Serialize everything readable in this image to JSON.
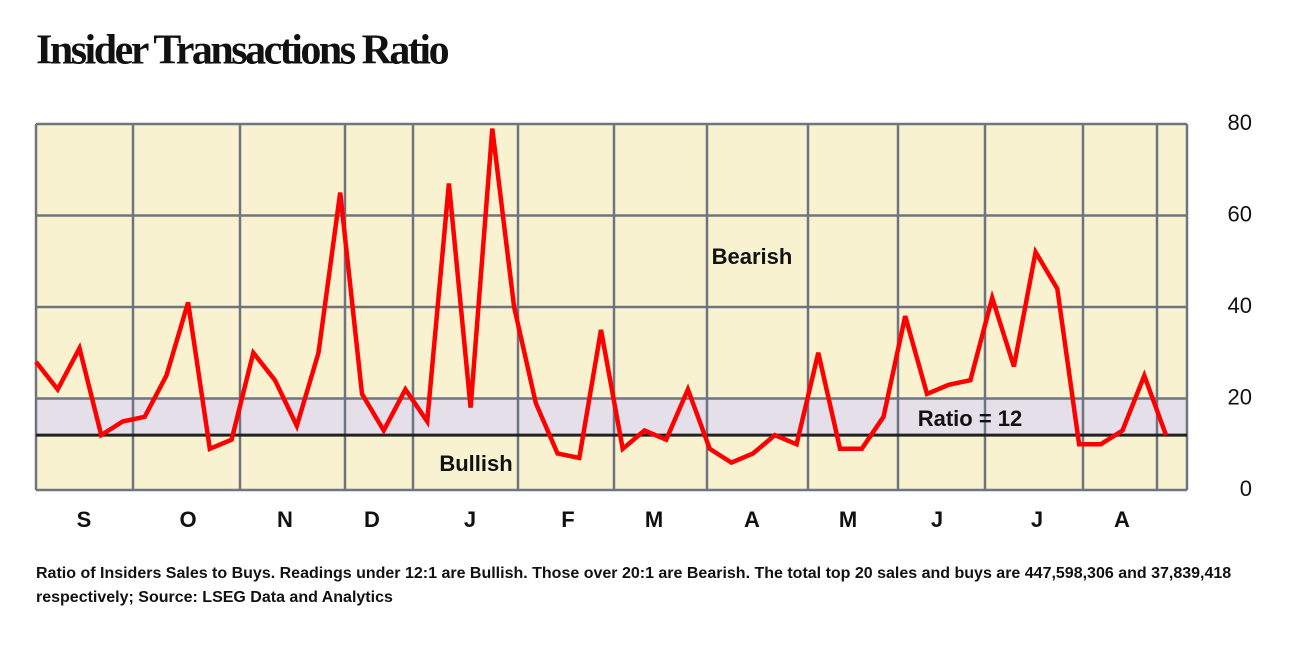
{
  "chart_data": {
    "type": "line",
    "title": "Insider Transactions Ratio",
    "months": [
      "S",
      "O",
      "N",
      "D",
      "J",
      "F",
      "M",
      "A",
      "M",
      "J",
      "J",
      "A"
    ],
    "series": [
      {
        "name": "Ratio of Insiders Sales to Buys",
        "color": "#ff0000",
        "values": [
          28,
          22,
          31,
          12,
          15,
          16,
          25,
          41,
          9,
          11,
          30,
          24,
          14,
          30,
          65,
          21,
          13,
          22,
          15,
          67,
          18,
          79,
          40,
          19,
          8,
          7,
          35,
          9,
          13,
          11,
          22,
          9,
          6,
          8,
          12,
          10,
          30,
          9,
          9,
          16,
          38,
          21,
          23,
          24,
          42,
          27,
          52,
          44,
          10,
          10,
          13,
          25,
          12
        ]
      }
    ],
    "ylim": [
      0,
      80
    ],
    "yticks": [
      0,
      20,
      40,
      60,
      80
    ],
    "grid": true,
    "reference_line": 12,
    "shaded_range": [
      12,
      20
    ],
    "annotations": [
      "Bearish",
      "Bullish",
      "Ratio = 12"
    ],
    "note": "Ratio of Insiders Sales to Buys. Readings under 12:1 are Bullish. Those over 20:1 are Bearish. The total top 20 sales and buys are 447,598,306 and 37,839,418 respectively; Source: LSEG Data and Analytics"
  }
}
